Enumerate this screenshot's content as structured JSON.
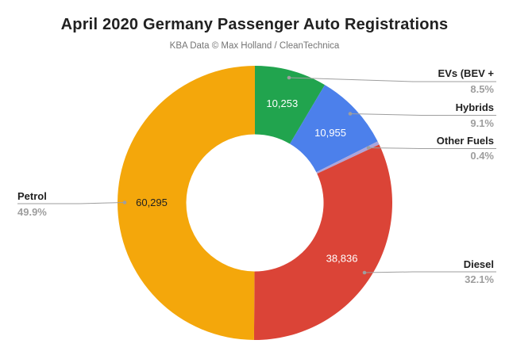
{
  "chart_data": {
    "type": "pie",
    "subtype": "donut",
    "title": "April 2020 Germany Passenger Auto Registrations",
    "subtitle": "KBA Data © Max Holland / CleanTechnica",
    "start_angle_deg": 0,
    "direction": "clockwise",
    "inner_radius_ratio": 0.5,
    "legend_position": "labeled-callouts",
    "slices": [
      {
        "label": "EVs (BEV +",
        "pct": 8.5,
        "pct_label": "8.5%",
        "value": 10253,
        "value_label": "10,253",
        "color": "#21A44E",
        "value_text_color": "#FFFFFF"
      },
      {
        "label": "Hybrids",
        "pct": 9.1,
        "pct_label": "9.1%",
        "value": 10955,
        "value_label": "10,955",
        "color": "#4C80EB",
        "value_text_color": "#FFFFFF"
      },
      {
        "label": "Other Fuels",
        "pct": 0.4,
        "pct_label": "0.4%",
        "value_label": "",
        "color": "#ACA5DA",
        "value_text_color": "#FFFFFF"
      },
      {
        "label": "Diesel",
        "pct": 32.1,
        "pct_label": "32.1%",
        "value": 38836,
        "value_label": "38,836",
        "color": "#DB4437",
        "value_text_color": "#FFFFFF"
      },
      {
        "label": "Petrol",
        "pct": 49.9,
        "pct_label": "49.9%",
        "value": 60295,
        "value_label": "60,295",
        "color": "#F4A70B",
        "value_text_color": "#212121"
      }
    ]
  },
  "styles": {
    "background": "#FFFFFF",
    "title_color": "#212121",
    "subtitle_color": "#757575",
    "label_color": "#212121",
    "pct_color": "#9E9E9E",
    "leader_color": "#9E9E9E"
  }
}
